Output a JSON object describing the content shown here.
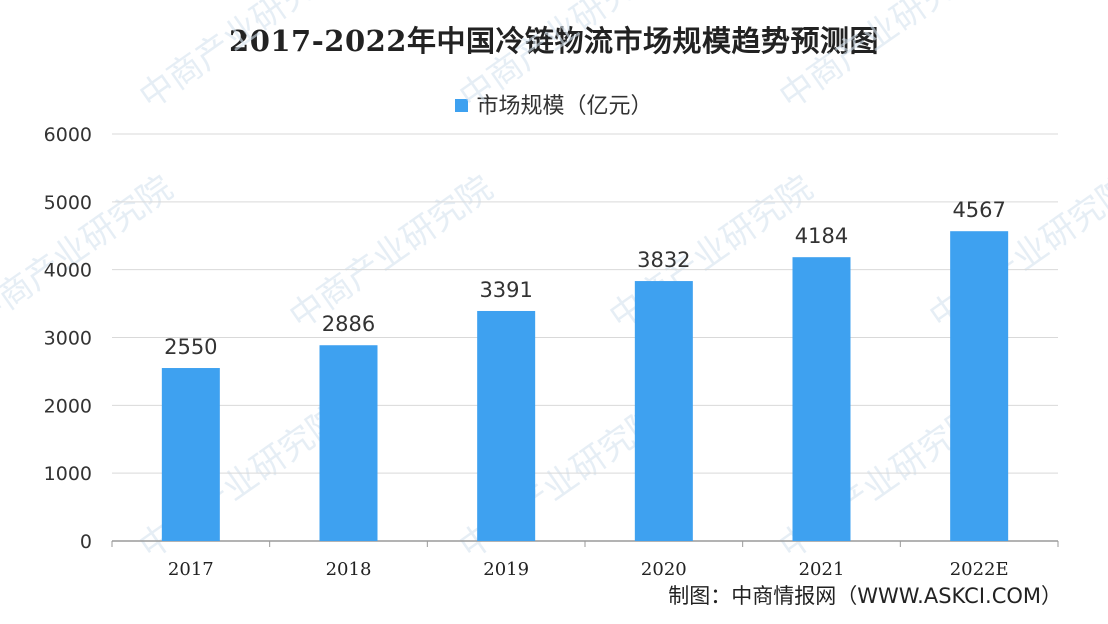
{
  "chart_data": {
    "type": "bar",
    "title": "2017-2022年中国冷链物流市场规模趋势预测图",
    "categories": [
      "2017",
      "2018",
      "2019",
      "2020",
      "2021",
      "2022E"
    ],
    "series": [
      {
        "name": "市场规模（亿元）",
        "values": [
          2550,
          2886,
          3391,
          3832,
          4184,
          4567
        ],
        "color": "#3ea1f0"
      }
    ],
    "ylim": [
      0,
      6000
    ],
    "yticks": [
      0,
      1000,
      2000,
      3000,
      4000,
      5000,
      6000
    ],
    "grid": true,
    "legend_position": "top-center",
    "data_labels": true
  },
  "source": "制图：中商情报网（WWW.ASKCI.COM）",
  "watermark": "中商产业研究院"
}
